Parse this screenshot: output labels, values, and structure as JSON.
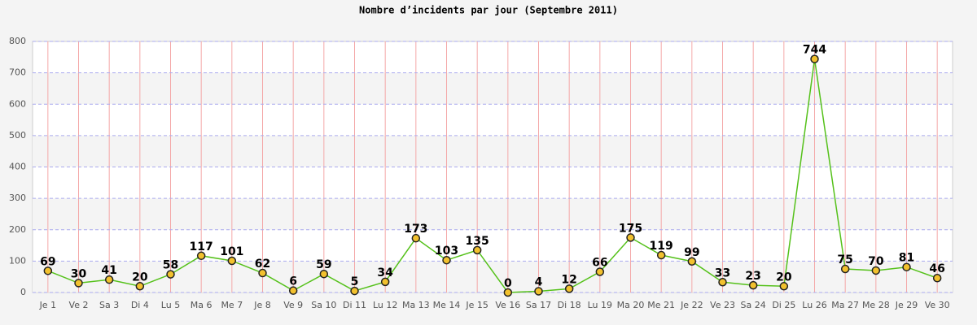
{
  "chart_data": {
    "type": "line",
    "title": "Nombre d’incidents par jour (Septembre 2011)",
    "categories": [
      "Je 1",
      "Ve 2",
      "Sa 3",
      "Di 4",
      "Lu 5",
      "Ma 6",
      "Me 7",
      "Je 8",
      "Ve 9",
      "Sa 10",
      "Di 11",
      "Lu 12",
      "Ma 13",
      "Me 14",
      "Je 15",
      "Ve 16",
      "Sa 17",
      "Di 18",
      "Lu 19",
      "Ma 20",
      "Me 21",
      "Je 22",
      "Ve 23",
      "Sa 24",
      "Di 25",
      "Lu 26",
      "Ma 27",
      "Me 28",
      "Je 29",
      "Ve 30"
    ],
    "values": [
      69,
      30,
      41,
      20,
      58,
      117,
      101,
      62,
      6,
      59,
      5,
      34,
      173,
      103,
      135,
      0,
      4,
      12,
      66,
      175,
      119,
      99,
      33,
      23,
      20,
      744,
      75,
      70,
      81,
      46
    ],
    "color": "#55c11a",
    "marker_color": "#f2c12e",
    "ylim": [
      0,
      800
    ],
    "yticks": [
      0,
      100,
      200,
      300,
      400,
      500,
      600,
      700,
      800
    ],
    "grid": true
  }
}
